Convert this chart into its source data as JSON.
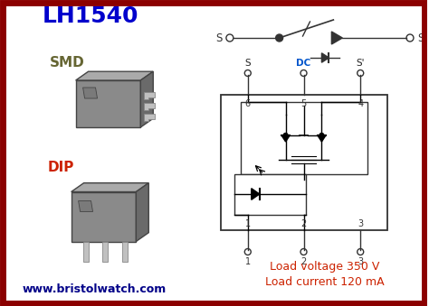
{
  "title": "LH1540",
  "title_color": "#0000CC",
  "title_fontsize": 18,
  "bg_color": "#ffffff",
  "border_color": "#8B0000",
  "border_linewidth": 5,
  "smd_label": "SMD",
  "smd_color": "#666633",
  "dip_label": "DIP",
  "dip_color": "#CC2200",
  "website": "www.bristolwatch.com",
  "website_color": "#000088",
  "load_voltage": "Load voltage 350 V",
  "load_current": "Load current 120 mA",
  "load_color": "#CC2200",
  "chip_body_color": "#8A8A8A",
  "chip_top_color": "#AAAAAA",
  "chip_right_color": "#6A6A6A",
  "chip_edge_color": "#444444",
  "chip_hole_color": "#666666",
  "pin_color": "#C0C0C0",
  "pin_edge_color": "#888888"
}
